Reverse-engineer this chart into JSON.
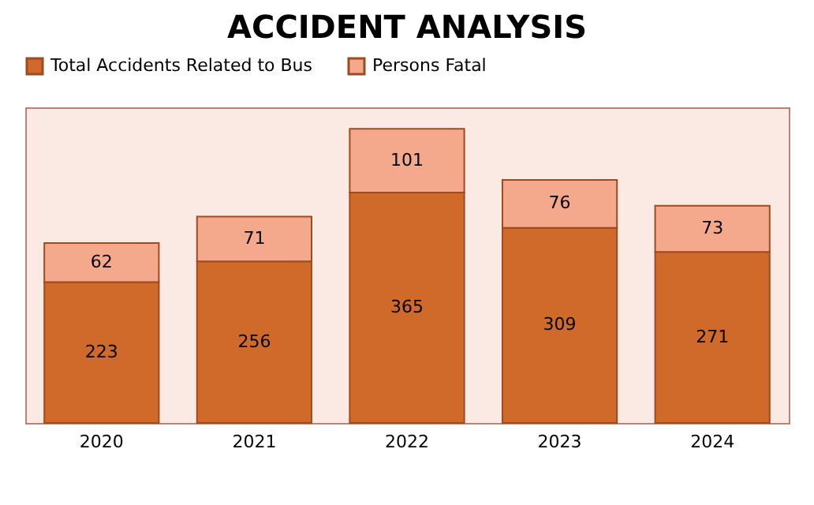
{
  "chart_data": {
    "type": "bar",
    "title": "ACCIDENT ANALYSIS",
    "categories": [
      "2020",
      "2021",
      "2022",
      "2023",
      "2024"
    ],
    "stacked": true,
    "series": [
      {
        "name": "Total Accidents Related to Bus",
        "color": "#d06a2a",
        "values": [
          223,
          256,
          365,
          309,
          271
        ]
      },
      {
        "name": "Persons Fatal",
        "color": "#f4a98c",
        "values": [
          62,
          71,
          101,
          76,
          73
        ]
      }
    ],
    "data_labels": true,
    "legend": "top",
    "tick_labels": "x"
  }
}
